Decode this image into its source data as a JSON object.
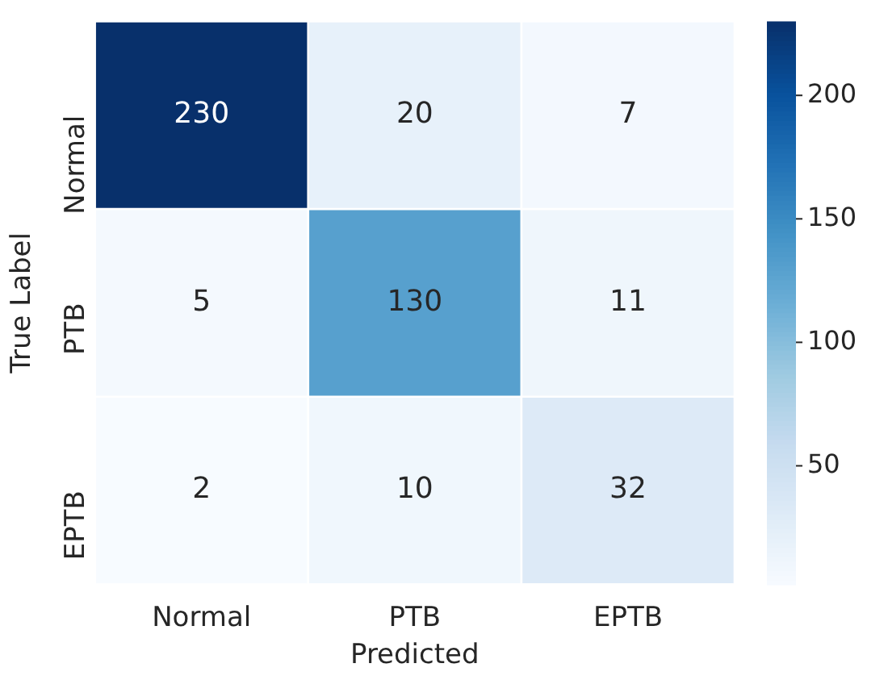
{
  "chart_data": {
    "type": "heatmap",
    "xlabel": "Predicted",
    "ylabel": "True Label",
    "categories": [
      "Normal",
      "PTB",
      "EPTB"
    ],
    "y_categories": [
      "Normal",
      "PTB",
      "EPTB"
    ],
    "cells": [
      [
        230,
        20,
        7
      ],
      [
        5,
        130,
        11
      ],
      [
        2,
        10,
        32
      ]
    ],
    "clim": [
      2,
      230
    ],
    "cticks": [
      50,
      100,
      150,
      200
    ],
    "data_labels": true
  }
}
